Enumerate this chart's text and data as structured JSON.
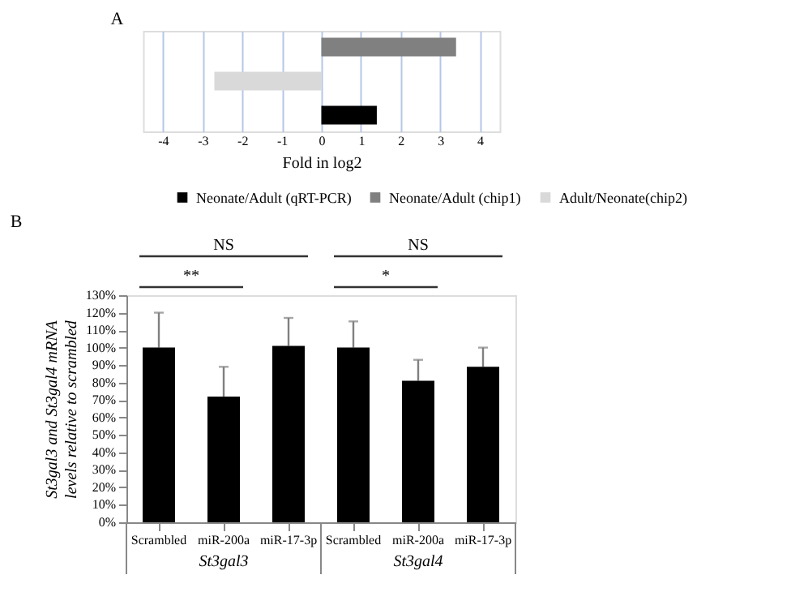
{
  "chart_data": [
    {
      "type": "bar",
      "title": "A",
      "orientation": "horizontal",
      "categories": [
        null,
        null,
        null
      ],
      "xlabel": "Fold in log2",
      "xlim": [
        -4.5,
        4.5
      ],
      "xticks": [
        -4,
        -3,
        -2,
        -1,
        0,
        1,
        2,
        3,
        4
      ],
      "grid": "x",
      "legend": "bottom",
      "tick_labels": "x",
      "series": [
        {
          "name": "Neonate/Adult (qRT-PCR)",
          "color": "#000000",
          "values": [
            null,
            null,
            1.4
          ]
        },
        {
          "name": "Neonate/Adult (chip1)",
          "color": "#808080",
          "values": [
            3.4,
            null,
            null
          ]
        },
        {
          "name": "Adult/Neonate(chip2)",
          "color": "#d9d9d9",
          "values": [
            null,
            -2.7,
            null
          ]
        }
      ]
    },
    {
      "type": "bar",
      "title": "B",
      "categories": [
        "Scrambled",
        "miR-200a",
        "miR-17-3p",
        "Scrambled",
        "miR-200a",
        "miR-17-3p"
      ],
      "ylabel": "St3gal3 and St3gal4 mRNA levels relative to scrambled",
      "ylim": [
        0,
        130
      ],
      "yticks": [
        {
          "value": 0,
          "label": "0%"
        },
        {
          "value": 10,
          "label": "10%"
        },
        {
          "value": 20,
          "label": "20%"
        },
        {
          "value": 30,
          "label": "30%"
        },
        {
          "value": 40,
          "label": "40%"
        },
        {
          "value": 50,
          "label": "50%"
        },
        {
          "value": 60,
          "label": "60%"
        },
        {
          "value": 70,
          "label": "70%"
        },
        {
          "value": 80,
          "label": "80%"
        },
        {
          "value": 90,
          "label": "90%"
        },
        {
          "value": 100,
          "label": "100%"
        },
        {
          "value": 110,
          "label": "110%"
        },
        {
          "value": 120,
          "label": "120%"
        },
        {
          "value": 130,
          "label": "130%"
        }
      ],
      "grid": false,
      "series": [
        {
          "color": "#000000",
          "values": [
            100,
            72,
            101,
            100,
            81,
            89
          ],
          "errors": [
            [
              100,
              120
            ],
            [
              72,
              89
            ],
            [
              101,
              117
            ],
            [
              100,
              115
            ],
            [
              81,
              93
            ],
            [
              89,
              100
            ]
          ]
        }
      ],
      "annotations": [
        "NS",
        "NS",
        "**",
        "*",
        "St3gal3",
        "St3gal4"
      ]
    }
  ]
}
